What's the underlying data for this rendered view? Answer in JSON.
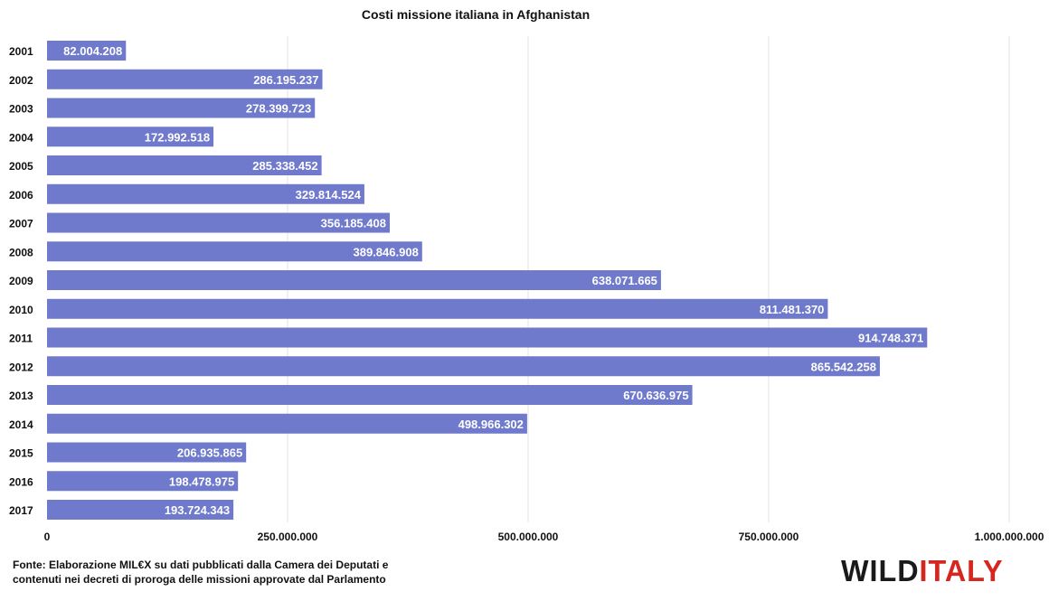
{
  "chart_data": {
    "type": "bar",
    "orientation": "horizontal",
    "title": "Costi missione italiana in Afghanistan",
    "xlabel": "",
    "ylabel": "",
    "categories": [
      "2001",
      "2002",
      "2003",
      "2004",
      "2005",
      "2006",
      "2007",
      "2008",
      "2009",
      "2010",
      "2011",
      "2012",
      "2013",
      "2014",
      "2015",
      "2016",
      "2017"
    ],
    "values": [
      82004208,
      286195237,
      278399723,
      172992518,
      285338452,
      329814524,
      356185408,
      389846908,
      638071665,
      811481370,
      914748371,
      865542258,
      670636975,
      498966302,
      206935865,
      198478975,
      193724343
    ],
    "value_labels": [
      "82.004.208",
      "286.195.237",
      "278.399.723",
      "172.992.518",
      "285.338.452",
      "329.814.524",
      "356.185.408",
      "389.846.908",
      "638.071.665",
      "811.481.370",
      "914.748.371",
      "865.542.258",
      "670.636.975",
      "498.966.302",
      "206.935.865",
      "198.478.975",
      "193.724.343"
    ],
    "xlim": [
      0,
      1000000000
    ],
    "x_ticks": [
      0,
      250000000,
      500000000,
      750000000,
      1000000000
    ],
    "x_tick_labels": [
      "0",
      "250.000.000",
      "500.000.000",
      "750.000.000",
      "1.000.000.000"
    ],
    "bar_color": "#6f7acc",
    "grid": true,
    "legend": "none"
  },
  "footnote": {
    "line1": "Fonte: Elaborazione MIL€X su dati pubblicati dalla Camera dei Deputati e",
    "line2": "contenuti nei decreti di proroga delle missioni approvate dal Parlamento"
  },
  "brand": {
    "part1": "WILD",
    "part2": "ITALY",
    "color_dark": "#1a1a1a",
    "color_accent": "#d6261f"
  }
}
